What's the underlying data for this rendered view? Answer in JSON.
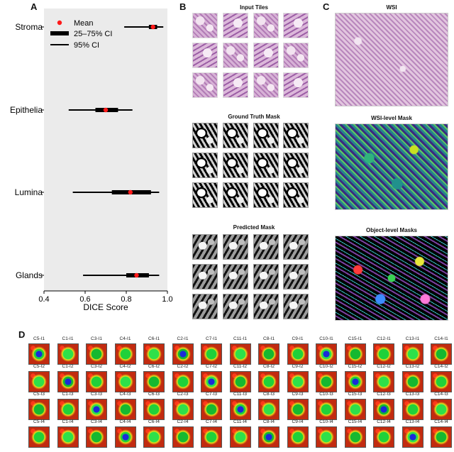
{
  "panels": {
    "a": "A",
    "b": "B",
    "c": "C",
    "d": "D"
  },
  "chart_data": {
    "type": "forest",
    "categories": [
      "Stroma",
      "Epithelia",
      "Lumina",
      "Glands"
    ],
    "mean": [
      0.93,
      0.7,
      0.82,
      0.85
    ],
    "ci_25_75": [
      [
        0.91,
        0.95
      ],
      [
        0.65,
        0.76
      ],
      [
        0.73,
        0.92
      ],
      [
        0.8,
        0.91
      ]
    ],
    "ci_95": [
      [
        0.79,
        0.98
      ],
      [
        0.52,
        0.83
      ],
      [
        0.54,
        0.96
      ],
      [
        0.59,
        0.96
      ]
    ],
    "xlabel": "DICE Score",
    "xlim": [
      0.4,
      1.0
    ],
    "xticks": [
      "0.4",
      "0.6",
      "0.8",
      "1.0"
    ],
    "legend": {
      "mean": "Mean",
      "ci50": "25–75% CI",
      "ci95": "95% CI",
      "placement": "top-left"
    },
    "colors": {
      "mean": "#ff1a1a",
      "bar": "#000000",
      "background": "#ebebeb"
    }
  },
  "panel_b": {
    "input_title": "Input Tiles",
    "gt_title": "Ground Truth Mask",
    "pred_title": "Predicted Mask"
  },
  "panel_c": {
    "wsi_title": "WSI",
    "wsi_mask_title": "WSI-level Mask",
    "object_title": "Object-level Masks"
  },
  "panel_d": {
    "clusters": [
      "C5",
      "C1",
      "C3",
      "C4",
      "C6",
      "C2",
      "C7",
      "C11",
      "C8",
      "C9",
      "C10",
      "C15",
      "C12",
      "C13",
      "C14"
    ],
    "rows": [
      "I1",
      "I2",
      "I3",
      "I4"
    ]
  }
}
